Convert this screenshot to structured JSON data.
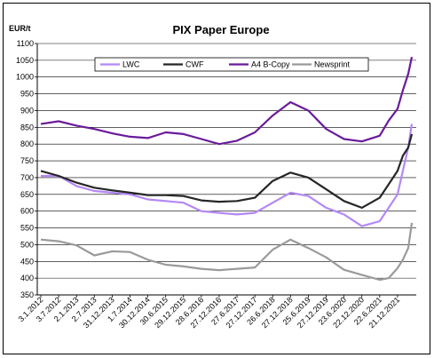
{
  "chart_data": {
    "type": "line",
    "title": "PIX Paper Europe",
    "ylabel": "EUR/t",
    "xlabel": "",
    "ylim": [
      350,
      1100
    ],
    "yticks": [
      350,
      400,
      450,
      500,
      550,
      600,
      650,
      700,
      750,
      800,
      850,
      900,
      950,
      1000,
      1050,
      1100
    ],
    "grid": "horizontal",
    "legend_position": "top",
    "x_tick_labels": [
      "3.1.2012",
      "3.7.2012",
      "2.1.2013",
      "2.7.2013",
      "31.12.2013",
      "1.7.2014",
      "30.12.2014",
      "30.6.2015",
      "29.12.2015",
      "28.6.2016",
      "27.12.2016",
      "27.6.2017",
      "27.12.2017",
      "26.6.2018",
      "27.12.2018",
      "25.6.2019",
      "27.12.2019",
      "23.6.2020",
      "22.12.2020",
      "22.6.2021",
      "21.12.2021"
    ],
    "x": [
      0,
      1,
      2,
      3,
      4,
      5,
      6,
      7,
      8,
      9,
      10,
      11,
      12,
      13,
      14,
      15,
      16,
      17,
      18,
      19,
      19.5,
      20,
      20.3,
      20.6,
      20.8
    ],
    "series": [
      {
        "name": "LWC",
        "color": "#b388f5",
        "values": [
          705,
          705,
          675,
          660,
          655,
          650,
          635,
          630,
          625,
          600,
          595,
          590,
          595,
          625,
          655,
          645,
          610,
          590,
          555,
          570,
          610,
          650,
          720,
          790,
          860
        ]
      },
      {
        "name": "CWF",
        "color": "#262626",
        "values": [
          720,
          705,
          685,
          670,
          662,
          655,
          648,
          648,
          645,
          632,
          628,
          630,
          640,
          690,
          715,
          700,
          665,
          630,
          610,
          640,
          680,
          720,
          765,
          790,
          830
        ]
      },
      {
        "name": "A4 B-Copy",
        "color": "#6a1b9a",
        "values": [
          860,
          868,
          855,
          845,
          832,
          822,
          818,
          835,
          830,
          815,
          800,
          810,
          835,
          885,
          925,
          900,
          845,
          815,
          808,
          825,
          870,
          905,
          960,
          1010,
          1060
        ]
      },
      {
        "name": "Newsprint",
        "color": "#9a9a9a",
        "values": [
          515,
          510,
          498,
          468,
          480,
          478,
          455,
          440,
          435,
          428,
          424,
          428,
          432,
          485,
          515,
          490,
          462,
          425,
          410,
          395,
          400,
          430,
          455,
          490,
          565
        ]
      }
    ]
  }
}
